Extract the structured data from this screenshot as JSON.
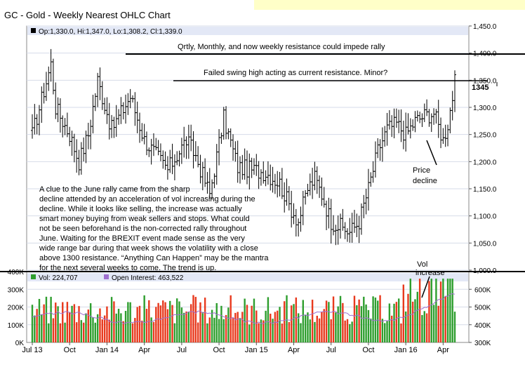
{
  "chart_data": [
    {
      "type": "ohlc",
      "title": "GC - Gold - Weekly Nearest OHLC Chart",
      "legend_text": "Op:1,330.0, Hi:1,347.0, Lo:1,308.2, Cl:1,339.0",
      "last_price_label": "1345",
      "ylim": [
        1000,
        1450
      ],
      "yticks": [
        1000,
        1050,
        1100,
        1150,
        1200,
        1250,
        1300,
        1350,
        1400,
        1450
      ],
      "ytick_labels": [
        "1,000.0",
        "1,050.0",
        "1,100.0",
        "1,150.0",
        "1,200.0",
        "1,250.0",
        "1,300.0",
        "1,350.0",
        "1,400.0",
        "1,450.0"
      ],
      "x_labels": [
        "Jul 13",
        "Oct",
        "Jan 14",
        "Apr",
        "Jul",
        "Oct",
        "Jan 15",
        "Apr",
        "Jul",
        "Oct",
        "Jan 16",
        "Apr"
      ],
      "anchors": [
        [
          0,
          1250
        ],
        [
          8,
          1380
        ],
        [
          10,
          1300
        ],
        [
          16,
          1250
        ],
        [
          20,
          1200
        ],
        [
          24,
          1250
        ],
        [
          28,
          1350
        ],
        [
          34,
          1260
        ],
        [
          42,
          1320
        ],
        [
          48,
          1240
        ],
        [
          58,
          1185
        ],
        [
          66,
          1240
        ],
        [
          70,
          1210
        ],
        [
          76,
          1140
        ],
        [
          82,
          1280
        ],
        [
          88,
          1190
        ],
        [
          94,
          1185
        ],
        [
          100,
          1180
        ],
        [
          106,
          1160
        ],
        [
          110,
          1120
        ],
        [
          114,
          1090
        ],
        [
          118,
          1150
        ],
        [
          121,
          1170
        ],
        [
          124,
          1140
        ],
        [
          128,
          1090
        ],
        [
          132,
          1080
        ],
        [
          136,
          1070
        ],
        [
          140,
          1090
        ],
        [
          144,
          1150
        ],
        [
          148,
          1220
        ],
        [
          152,
          1260
        ],
        [
          156,
          1270
        ],
        [
          160,
          1250
        ],
        [
          164,
          1275
        ],
        [
          168,
          1285
        ],
        [
          172,
          1290
        ],
        [
          176,
          1240
        ],
        [
          178,
          1270
        ],
        [
          181,
          1345
        ]
      ]
    },
    {
      "type": "bar",
      "legend_vol": "Vol: 224,707",
      "legend_oi": "Open Interest: 463,522",
      "ylim": [
        0,
        400000
      ],
      "ytick_labels": [
        "0K",
        "100K",
        "200K",
        "300K",
        "400K"
      ],
      "oi_ylim": [
        300000,
        700000
      ],
      "oi_tick_labels": [
        "300K",
        "400K",
        "500K",
        "600K"
      ],
      "up_color": "#2e9e2e",
      "down_color": "#e8391d",
      "oi_color": "#a070d0"
    }
  ],
  "annotations": {
    "resistance_major": "Qrtly, Monthly, and now weekly resistance could impede rally",
    "resistance_minor": "Failed swing high acting as current resistance.  Minor?",
    "price_decline": [
      "Price",
      "decline"
    ],
    "vol_increase": [
      "Vol",
      "increase"
    ],
    "commentary": [
      "A clue to the June rally came from the sharp",
      "decline attended by an acceleration of vol increasing during the",
      "decline.  While it looks like selling, the increase was actually",
      "smart money buying from weak sellers and stops.  What could",
      "not be seen beforehand is the non-corrected rally throughout",
      "June.  Waiting for the BREXIT event made sense as the very",
      "wide range bar during that week shows the volatility with a close",
      "above 1300 resistance.  “Anything Can Happen” may be the mantra",
      "for the next several weeks to come.  The trend is up."
    ]
  }
}
